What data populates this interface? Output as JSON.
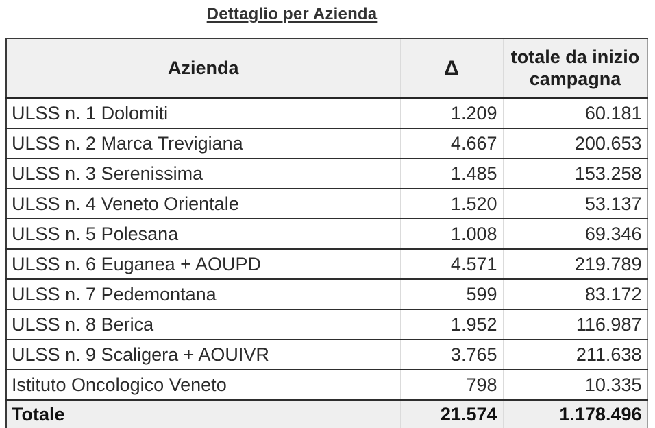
{
  "title": "Dettaglio per Azienda",
  "chart_data": {
    "type": "table",
    "title": "Dettaglio per Azienda",
    "columns": [
      "Azienda",
      "Δ",
      "totale da inizio campagna"
    ],
    "rows": [
      [
        "ULSS n. 1 Dolomiti",
        "1.209",
        "60.181"
      ],
      [
        "ULSS n. 2 Marca Trevigiana",
        "4.667",
        "200.653"
      ],
      [
        "ULSS n. 3 Serenissima",
        "1.485",
        "153.258"
      ],
      [
        "ULSS n. 4 Veneto Orientale",
        "1.520",
        "53.137"
      ],
      [
        "ULSS n. 5 Polesana",
        "1.008",
        "69.346"
      ],
      [
        "ULSS n. 6 Euganea + AOUPD",
        "4.571",
        "219.789"
      ],
      [
        "ULSS n. 7 Pedemontana",
        "599",
        "83.172"
      ],
      [
        "ULSS n. 8 Berica",
        "1.952",
        "116.987"
      ],
      [
        "ULSS n. 9 Scaligera + AOUIVR",
        "3.765",
        "211.638"
      ],
      [
        "Istituto Oncologico Veneto",
        "798",
        "10.335"
      ]
    ],
    "total_row": [
      "Totale",
      "21.574",
      "1.178.496"
    ],
    "layout": {
      "header_bg": "#f0f0f0",
      "total_bg": "#efefef",
      "rule_dark": "#2e2e2e",
      "rule_light": "#dbdbdb",
      "text_color": "#2b2b2b"
    }
  }
}
